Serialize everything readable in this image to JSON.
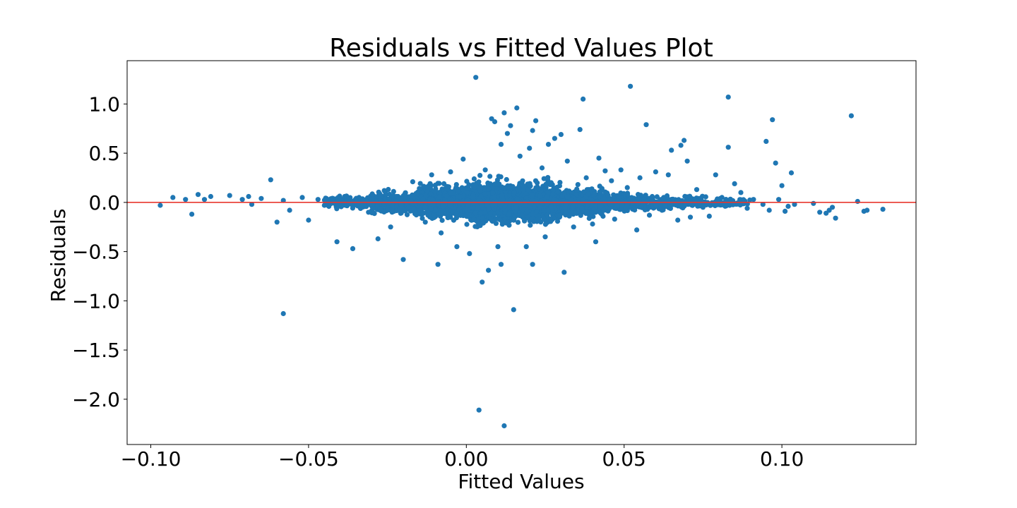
{
  "chart_data": {
    "type": "scatter",
    "title": "Residuals vs Fitted Values Plot",
    "xlabel": "Fitted Values",
    "ylabel": "Residuals",
    "xlim": [
      -0.1075,
      0.1425
    ],
    "ylim": [
      -2.46,
      1.44
    ],
    "xticks": [
      -0.1,
      -0.05,
      0.0,
      0.05,
      0.1
    ],
    "xtick_labels": [
      "−0.10",
      "−0.05",
      "0.00",
      "0.05",
      "0.10"
    ],
    "yticks": [
      1.0,
      0.5,
      0.0,
      -0.5,
      -1.0,
      -1.5,
      -2.0
    ],
    "ytick_labels": [
      "1.0",
      "0.5",
      "0.0",
      "−0.5",
      "−1.0",
      "−1.5",
      "−2.0"
    ],
    "grid": false,
    "reference_line": {
      "y": 0.0,
      "color": "#e8372d"
    },
    "point_color": "#1f77b4",
    "points": [
      [
        -0.097,
        -0.03
      ],
      [
        -0.093,
        0.05
      ],
      [
        -0.089,
        0.03
      ],
      [
        -0.087,
        -0.12
      ],
      [
        -0.085,
        0.08
      ],
      [
        -0.083,
        0.03
      ],
      [
        -0.081,
        0.06
      ],
      [
        -0.075,
        0.07
      ],
      [
        -0.071,
        0.03
      ],
      [
        -0.069,
        0.06
      ],
      [
        -0.068,
        -0.02
      ],
      [
        -0.065,
        0.04
      ],
      [
        -0.062,
        0.23
      ],
      [
        -0.06,
        -0.2
      ],
      [
        -0.058,
        -1.13
      ],
      [
        -0.058,
        0.02
      ],
      [
        -0.056,
        -0.08
      ],
      [
        -0.052,
        0.05
      ],
      [
        -0.05,
        -0.18
      ],
      [
        -0.047,
        0.03
      ],
      [
        -0.045,
        -0.03
      ],
      [
        -0.041,
        -0.4
      ],
      [
        -0.036,
        -0.47
      ],
      [
        -0.034,
        0.05
      ],
      [
        -0.031,
        -0.1
      ],
      [
        -0.028,
        -0.37
      ],
      [
        -0.026,
        0.12
      ],
      [
        -0.024,
        -0.25
      ],
      [
        -0.02,
        -0.58
      ],
      [
        -0.017,
        0.21
      ],
      [
        -0.013,
        -0.2
      ],
      [
        -0.011,
        0.28
      ],
      [
        -0.009,
        -0.63
      ],
      [
        -0.008,
        -0.31
      ],
      [
        -0.005,
        0.31
      ],
      [
        -0.003,
        -0.45
      ],
      [
        -0.001,
        0.44
      ],
      [
        0.001,
        -0.52
      ],
      [
        0.003,
        1.27
      ],
      [
        0.004,
        -2.11
      ],
      [
        0.005,
        -0.81
      ],
      [
        0.006,
        0.33
      ],
      [
        0.007,
        -0.69
      ],
      [
        0.008,
        0.85
      ],
      [
        0.009,
        0.82
      ],
      [
        0.01,
        -0.45
      ],
      [
        0.011,
        0.59
      ],
      [
        0.011,
        -0.63
      ],
      [
        0.012,
        0.91
      ],
      [
        0.012,
        -2.27
      ],
      [
        0.013,
        0.7
      ],
      [
        0.014,
        0.78
      ],
      [
        0.015,
        -1.09
      ],
      [
        0.016,
        0.96
      ],
      [
        0.017,
        0.47
      ],
      [
        0.019,
        -0.45
      ],
      [
        0.02,
        0.55
      ],
      [
        0.021,
        -0.63
      ],
      [
        0.021,
        0.73
      ],
      [
        0.022,
        0.83
      ],
      [
        0.024,
        0.35
      ],
      [
        0.025,
        -0.35
      ],
      [
        0.026,
        0.59
      ],
      [
        0.028,
        0.65
      ],
      [
        0.029,
        0.11
      ],
      [
        0.03,
        0.69
      ],
      [
        0.031,
        -0.71
      ],
      [
        0.032,
        0.42
      ],
      [
        0.034,
        -0.25
      ],
      [
        0.036,
        0.74
      ],
      [
        0.037,
        1.05
      ],
      [
        0.038,
        0.25
      ],
      [
        0.04,
        -0.22
      ],
      [
        0.041,
        -0.4
      ],
      [
        0.042,
        0.45
      ],
      [
        0.044,
        0.32
      ],
      [
        0.046,
        0.22
      ],
      [
        0.047,
        -0.17
      ],
      [
        0.049,
        0.33
      ],
      [
        0.051,
        0.15
      ],
      [
        0.052,
        1.18
      ],
      [
        0.054,
        -0.28
      ],
      [
        0.055,
        0.25
      ],
      [
        0.057,
        0.79
      ],
      [
        0.058,
        -0.13
      ],
      [
        0.06,
        0.31
      ],
      [
        0.062,
        -0.08
      ],
      [
        0.064,
        0.28
      ],
      [
        0.065,
        0.53
      ],
      [
        0.067,
        -0.18
      ],
      [
        0.068,
        0.58
      ],
      [
        0.069,
        0.63
      ],
      [
        0.07,
        0.42
      ],
      [
        0.071,
        -0.15
      ],
      [
        0.073,
        0.13
      ],
      [
        0.075,
        -0.05
      ],
      [
        0.077,
        -0.14
      ],
      [
        0.079,
        0.28
      ],
      [
        0.081,
        0.05
      ],
      [
        0.083,
        0.56
      ],
      [
        0.083,
        1.07
      ],
      [
        0.085,
        0.19
      ],
      [
        0.087,
        0.1
      ],
      [
        0.089,
        -0.06
      ],
      [
        0.091,
        0.03
      ],
      [
        0.094,
        -0.02
      ],
      [
        0.095,
        0.62
      ],
      [
        0.096,
        -0.08
      ],
      [
        0.097,
        0.84
      ],
      [
        0.098,
        0.4
      ],
      [
        0.099,
        0.03
      ],
      [
        0.1,
        0.17
      ],
      [
        0.101,
        -0.09
      ],
      [
        0.102,
        -0.04
      ],
      [
        0.103,
        0.3
      ],
      [
        0.104,
        -0.02
      ],
      [
        0.11,
        -0.01
      ],
      [
        0.112,
        -0.1
      ],
      [
        0.114,
        -0.11
      ],
      [
        0.115,
        -0.08
      ],
      [
        0.116,
        -0.05
      ],
      [
        0.117,
        -0.16
      ],
      [
        0.122,
        0.88
      ],
      [
        0.124,
        0.01
      ],
      [
        0.126,
        -0.09
      ],
      [
        0.127,
        -0.08
      ],
      [
        0.132,
        -0.07
      ]
    ],
    "dense_cloud": [
      {
        "x": [
          -0.045,
          -0.03
        ],
        "y_spread": 0.05,
        "count": 140
      },
      {
        "x": [
          -0.03,
          -0.015
        ],
        "y_spread": 0.09,
        "count": 300
      },
      {
        "x": [
          -0.015,
          0.0
        ],
        "y_spread": 0.14,
        "count": 520
      },
      {
        "x": [
          0.0,
          0.015
        ],
        "y_spread": 0.17,
        "count": 800
      },
      {
        "x": [
          0.015,
          0.03
        ],
        "y_spread": 0.16,
        "count": 760
      },
      {
        "x": [
          0.03,
          0.045
        ],
        "y_spread": 0.11,
        "count": 480
      },
      {
        "x": [
          0.045,
          0.06
        ],
        "y_spread": 0.07,
        "count": 280
      },
      {
        "x": [
          0.06,
          0.075
        ],
        "y_spread": 0.05,
        "count": 140
      },
      {
        "x": [
          0.075,
          0.09
        ],
        "y_spread": 0.035,
        "count": 60
      }
    ]
  }
}
